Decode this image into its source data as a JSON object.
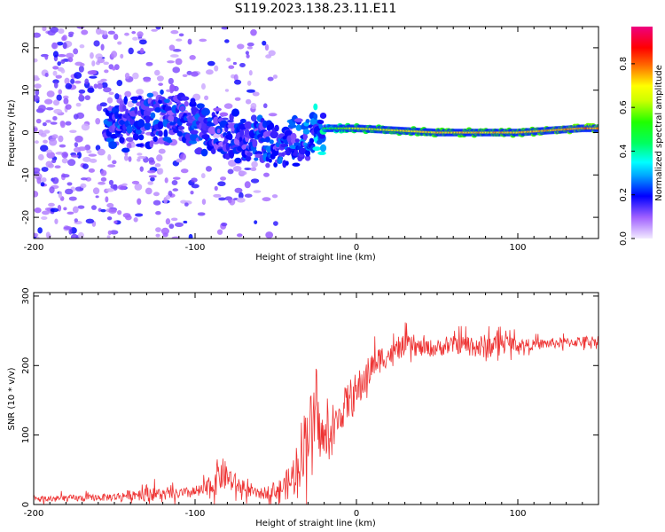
{
  "figure_title": "S119.2023.138.23.11.E11",
  "chart_data": [
    {
      "type": "heatmap",
      "xlabel": "Height of straight line (km)",
      "ylabel": "Frequency (Hz)",
      "xlim": [
        -200,
        150
      ],
      "ylim": [
        -25,
        25
      ],
      "xticks": [
        -200,
        -100,
        0,
        100
      ],
      "xtick_labels": [
        "-200",
        "-100",
        "0",
        "100"
      ],
      "yticks": [
        -20,
        -10,
        0,
        10,
        20
      ],
      "ytick_labels": [
        "-20",
        "-10",
        "0",
        "10",
        "20"
      ],
      "colorbar": {
        "label": "Normalized spectral amplitude",
        "range": [
          0,
          0.97
        ],
        "ticks": [
          0.0,
          0.2,
          0.4,
          0.6,
          0.8
        ],
        "tick_labels": [
          "0.0",
          "0.2",
          "0.4",
          "0.6",
          "0.8"
        ]
      },
      "ridge": [
        {
          "x": -150,
          "y": 2,
          "amp": 0.3
        },
        {
          "x": -130,
          "y": 3,
          "amp": 0.3
        },
        {
          "x": -110,
          "y": 4,
          "amp": 0.28
        },
        {
          "x": -95,
          "y": 1,
          "amp": 0.3
        },
        {
          "x": -80,
          "y": -1,
          "amp": 0.25
        },
        {
          "x": -60,
          "y": -2,
          "amp": 0.3
        },
        {
          "x": -45,
          "y": -3,
          "amp": 0.3
        },
        {
          "x": -30,
          "y": -1,
          "amp": 0.35
        },
        {
          "x": -20,
          "y": 1,
          "amp": 0.5
        },
        {
          "x": 0,
          "y": 1,
          "amp": 0.7
        },
        {
          "x": 50,
          "y": 0,
          "amp": 0.8
        },
        {
          "x": 100,
          "y": 0,
          "amp": 0.8
        },
        {
          "x": 140,
          "y": 1,
          "amp": 0.85
        }
      ]
    },
    {
      "type": "line",
      "xlabel": "Height of straight line (km)",
      "ylabel": "SNR (10 * v/v)",
      "xlim": [
        -200,
        150
      ],
      "ylim": [
        0,
        305
      ],
      "xticks": [
        -200,
        -100,
        0,
        100
      ],
      "xtick_labels": [
        "-200",
        "-100",
        "0",
        "100"
      ],
      "yticks": [
        0,
        100,
        200,
        300
      ],
      "ytick_labels": [
        "0",
        "100",
        "200",
        "300"
      ],
      "color": "#ee3333",
      "series": [
        {
          "name": "SNR",
          "x": [
            -200,
            -190,
            -180,
            -170,
            -160,
            -150,
            -140,
            -130,
            -120,
            -110,
            -100,
            -95,
            -90,
            -85,
            -80,
            -75,
            -70,
            -65,
            -60,
            -55,
            -50,
            -45,
            -40,
            -35,
            -30,
            -25,
            -20,
            -15,
            -10,
            -5,
            0,
            5,
            10,
            15,
            20,
            25,
            30,
            40,
            50,
            60,
            70,
            80,
            90,
            100,
            110,
            120,
            130,
            140,
            150
          ],
          "y": [
            8,
            8,
            9,
            9,
            10,
            11,
            14,
            17,
            14,
            15,
            18,
            20,
            25,
            45,
            40,
            30,
            22,
            18,
            15,
            18,
            20,
            25,
            35,
            70,
            110,
            120,
            90,
            100,
            130,
            150,
            160,
            180,
            200,
            210,
            215,
            220,
            230,
            225,
            225,
            230,
            230,
            225,
            235,
            230,
            230,
            232,
            233,
            235,
            236
          ]
        }
      ],
      "noise_band": [
        10,
        10,
        10,
        10,
        10,
        12,
        14,
        25,
        16,
        15,
        18,
        20,
        35,
        55,
        40,
        30,
        20,
        16,
        15,
        20,
        25,
        35,
        60,
        90,
        100,
        90,
        70,
        60,
        50,
        60,
        60,
        50,
        40,
        40,
        30,
        30,
        30,
        25,
        25,
        25,
        30,
        40,
        25,
        20,
        15,
        15,
        15,
        15,
        15
      ]
    }
  ]
}
